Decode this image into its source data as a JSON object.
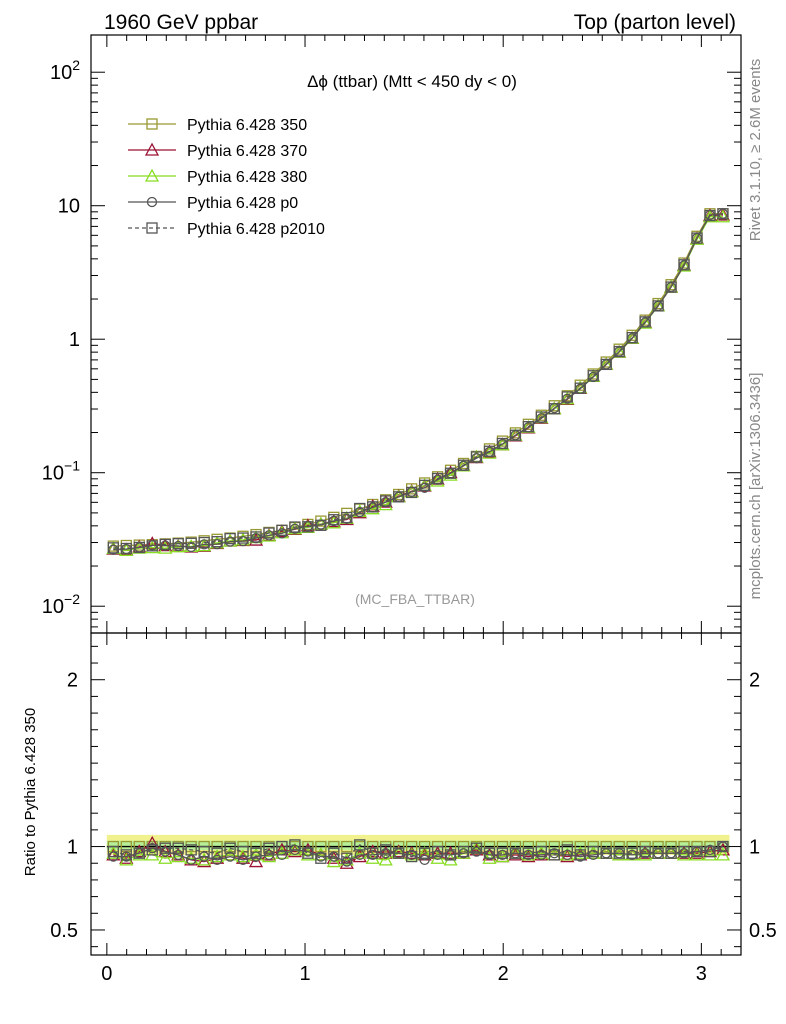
{
  "header": {
    "left_title": "1960 GeV ppbar",
    "right_title": "Top (parton level)"
  },
  "side_labels": {
    "rivet": "Rivet 3.1.10, ≥ 2.6M events",
    "mcplots": "mcplots.cern.ch [arXiv:1306.3436]"
  },
  "chart_data": {
    "type": "line",
    "title": "Δϕ (ttbar) (Mtt < 450 dy < 0)",
    "watermark": "(MC_FBA_TTBAR)",
    "main": {
      "yscale": "log",
      "xlim": [
        -0.08,
        3.2
      ],
      "ylim": [
        0.0063,
        190
      ],
      "ytick_labels": [
        {
          "value": 0.01,
          "base": "10",
          "exp": "−2"
        },
        {
          "value": 0.1,
          "base": "10",
          "exp": "−1"
        },
        {
          "value": 1,
          "base": "1",
          "exp": ""
        },
        {
          "value": 10,
          "base": "10",
          "exp": ""
        },
        {
          "value": 100,
          "base": "10",
          "exp": "2"
        }
      ]
    },
    "ratio": {
      "ylabel": "Ratio to Pythia 6.428 350",
      "ylim": [
        0.35,
        2.28
      ],
      "ytick_labels": [
        "0.5",
        "1",
        "2"
      ],
      "band_outer": [
        0.95,
        1.07
      ],
      "band_inner": [
        0.98,
        1.035
      ]
    },
    "xtick_labels": [
      "0",
      "1",
      "2",
      "3"
    ],
    "legend_position": "top-left",
    "x": [
      0.0327,
      0.0982,
      0.1636,
      0.2291,
      0.2945,
      0.36,
      0.4254,
      0.4909,
      0.5563,
      0.6218,
      0.6872,
      0.7527,
      0.8181,
      0.8836,
      0.949,
      1.0145,
      1.0799,
      1.1454,
      1.2108,
      1.2763,
      1.3417,
      1.4072,
      1.4726,
      1.5381,
      1.6035,
      1.669,
      1.7344,
      1.7999,
      1.8653,
      1.9308,
      1.9962,
      2.0617,
      2.1271,
      2.1926,
      2.258,
      2.3235,
      2.3889,
      2.4544,
      2.5198,
      2.5853,
      2.6507,
      2.7162,
      2.7816,
      2.8471,
      2.9125,
      2.978,
      3.0434,
      3.1089
    ],
    "series": [
      {
        "name": "Pythia 6.428 350",
        "color": "#999933",
        "marker": "square",
        "values": [
          0.0282,
          0.0285,
          0.0287,
          0.0289,
          0.0293,
          0.0297,
          0.0302,
          0.0309,
          0.0317,
          0.0324,
          0.0334,
          0.0344,
          0.0357,
          0.037,
          0.0388,
          0.041,
          0.0434,
          0.0463,
          0.0496,
          0.0534,
          0.0578,
          0.0627,
          0.0687,
          0.0757,
          0.0838,
          0.0932,
          0.1043,
          0.1173,
          0.1325,
          0.1508,
          0.1725,
          0.1988,
          0.2305,
          0.2694,
          0.3173,
          0.3769,
          0.4523,
          0.5487,
          0.6747,
          0.842,
          1.07,
          1.39,
          1.85,
          2.56,
          3.72,
          5.9,
          8.7,
          8.7
        ]
      },
      {
        "name": "Pythia 6.428 370",
        "color": "#991133",
        "marker": "triangle",
        "ratio": [
          0.95,
          0.93,
          0.97,
          1.02,
          0.97,
          0.95,
          0.92,
          0.91,
          0.93,
          0.95,
          0.93,
          0.91,
          0.95,
          0.98,
          0.97,
          0.98,
          0.95,
          0.93,
          0.9,
          0.94,
          0.97,
          0.96,
          0.97,
          0.96,
          0.95,
          0.96,
          0.96,
          0.96,
          0.98,
          0.95,
          0.94,
          0.95,
          0.94,
          0.95,
          0.95,
          0.94,
          0.95,
          0.96,
          0.96,
          0.95,
          0.95,
          0.96,
          0.96,
          0.96,
          0.96,
          0.96,
          0.97,
          0.98
        ]
      },
      {
        "name": "Pythia 6.428 380",
        "color": "#88dd22",
        "marker": "triangle",
        "ratio": [
          0.96,
          0.92,
          0.95,
          0.95,
          0.93,
          0.94,
          0.93,
          0.92,
          0.94,
          0.95,
          0.94,
          0.95,
          0.94,
          0.96,
          0.98,
          0.95,
          0.95,
          0.91,
          0.92,
          0.96,
          0.93,
          0.92,
          0.96,
          0.95,
          0.96,
          0.93,
          0.92,
          0.96,
          0.99,
          0.93,
          0.94,
          0.96,
          0.95,
          0.96,
          0.95,
          0.95,
          0.96,
          0.96,
          0.96,
          0.95,
          0.95,
          0.95,
          0.96,
          0.96,
          0.95,
          0.95,
          0.95,
          0.95
        ]
      },
      {
        "name": "Pythia 6.428 p0",
        "color": "#555555",
        "marker": "circle",
        "ratio": [
          0.94,
          0.94,
          0.96,
          0.99,
          0.97,
          0.95,
          0.92,
          0.94,
          0.92,
          0.94,
          0.92,
          0.94,
          0.95,
          0.95,
          0.98,
          0.97,
          0.94,
          0.94,
          0.91,
          0.95,
          0.95,
          0.96,
          0.96,
          0.95,
          0.92,
          0.95,
          0.95,
          0.96,
          0.97,
          0.95,
          0.95,
          0.96,
          0.95,
          0.95,
          0.96,
          0.95,
          0.94,
          0.95,
          0.96,
          0.96,
          0.95,
          0.96,
          0.96,
          0.96,
          0.96,
          0.97,
          0.98,
          1.0
        ]
      },
      {
        "name": "Pythia 6.428 p2010",
        "color": "#555555",
        "marker": "square",
        "dashed": true,
        "ratio": [
          0.97,
          0.95,
          0.96,
          0.98,
          0.99,
          0.99,
          0.98,
          0.97,
          0.96,
          0.99,
          0.97,
          0.96,
          0.99,
          1.0,
          1.01,
          0.96,
          0.93,
          0.96,
          0.93,
          1.01,
          0.96,
          0.98,
          0.96,
          0.94,
          0.96,
          0.97,
          0.95,
          0.97,
          0.99,
          0.96,
          0.96,
          0.96,
          0.96,
          0.97,
          0.95,
          0.98,
          0.95,
          0.97,
          0.96,
          0.96,
          0.96,
          0.97,
          0.96,
          0.96,
          0.97,
          0.97,
          0.97,
          1.0
        ]
      }
    ]
  }
}
